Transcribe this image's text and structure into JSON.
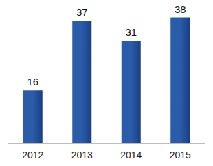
{
  "chart_data": {
    "type": "bar",
    "categories": [
      "2012",
      "2013",
      "2014",
      "2015"
    ],
    "values": [
      16,
      37,
      31,
      38
    ],
    "color": "#2a5caa",
    "data_labels": true,
    "tick_labels": "x",
    "grid": false
  }
}
